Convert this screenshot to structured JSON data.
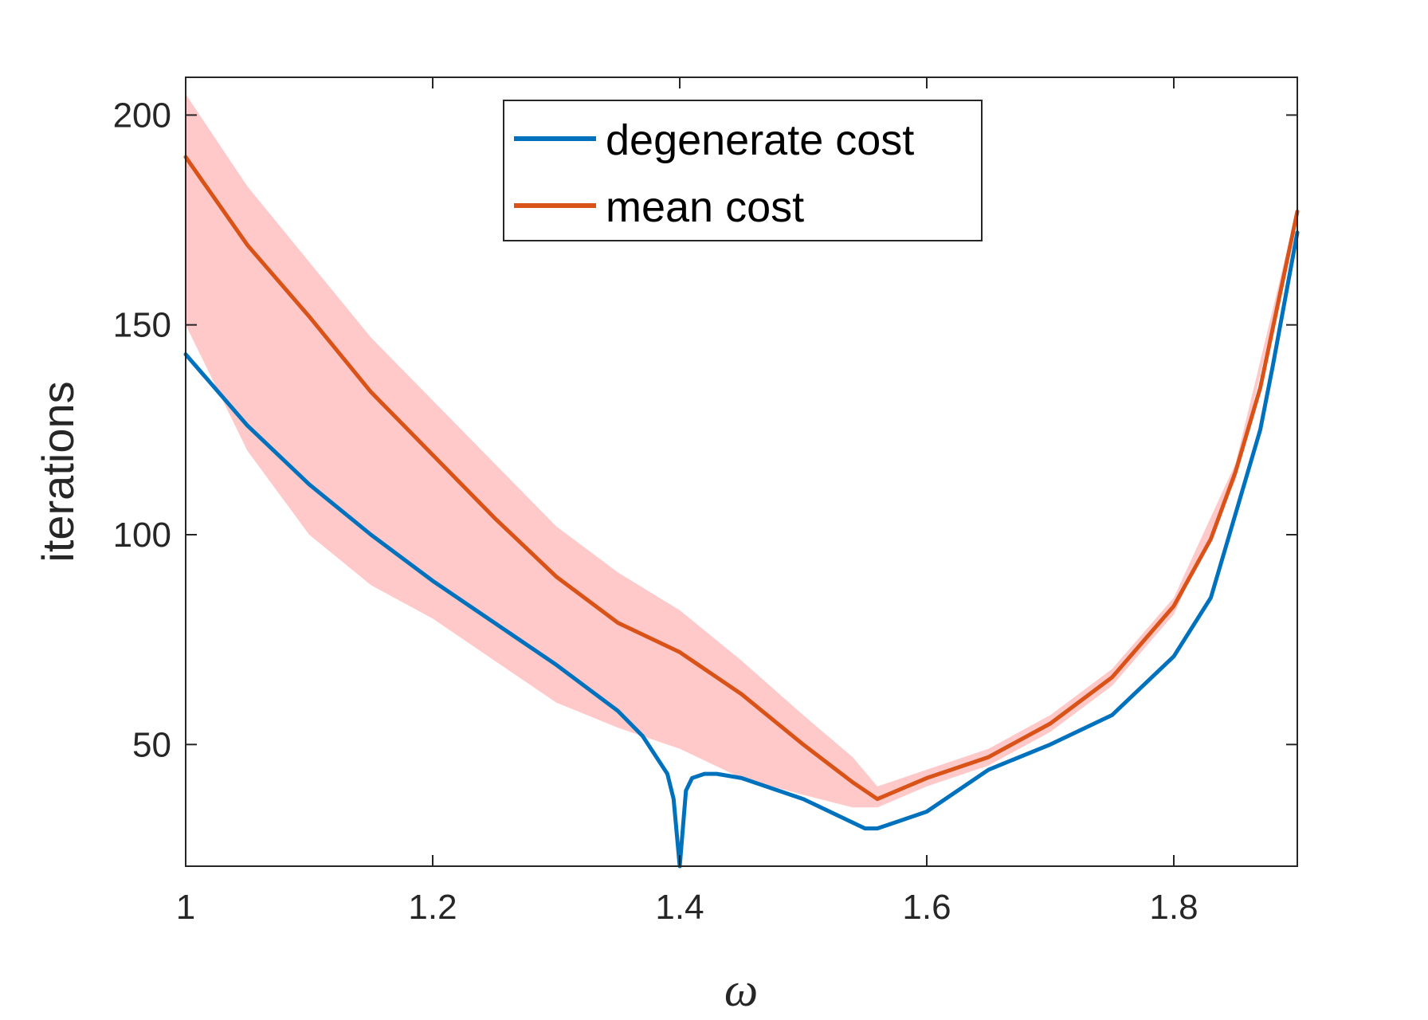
{
  "chart_data": {
    "type": "line",
    "title": "",
    "xlabel": "ω",
    "ylabel": "iterations",
    "xlim": [
      1,
      1.9
    ],
    "ylim": [
      21,
      209
    ],
    "xticks": [
      1,
      1.2,
      1.4,
      1.6,
      1.8
    ],
    "xtick_labels": [
      "1",
      "1.2",
      "1.4",
      "1.6",
      "1.8"
    ],
    "yticks": [
      50,
      100,
      150,
      200
    ],
    "ytick_labels": [
      "50",
      "100",
      "150",
      "200"
    ],
    "grid": false,
    "legend_position": "top-center",
    "series": [
      {
        "name": "degenerate cost",
        "color": "#0072BD",
        "x": [
          1.0,
          1.05,
          1.1,
          1.15,
          1.2,
          1.25,
          1.3,
          1.35,
          1.37,
          1.39,
          1.395,
          1.4,
          1.405,
          1.41,
          1.42,
          1.43,
          1.45,
          1.5,
          1.55,
          1.56,
          1.58,
          1.6,
          1.65,
          1.7,
          1.75,
          1.8,
          1.83,
          1.85,
          1.87,
          1.88,
          1.9
        ],
        "values": [
          143,
          126,
          112,
          100,
          89,
          79,
          69,
          58,
          52,
          43,
          37,
          21,
          39,
          42,
          43,
          43,
          42,
          37,
          30,
          30,
          32,
          34,
          44,
          50,
          57,
          71,
          85,
          105,
          125,
          140,
          172
        ]
      },
      {
        "name": "mean cost",
        "color": "#D95319",
        "x": [
          1.0,
          1.05,
          1.1,
          1.15,
          1.2,
          1.25,
          1.3,
          1.35,
          1.4,
          1.45,
          1.5,
          1.54,
          1.56,
          1.6,
          1.65,
          1.7,
          1.75,
          1.8,
          1.83,
          1.85,
          1.87,
          1.9
        ],
        "values": [
          190,
          169,
          152,
          134,
          119,
          104,
          90,
          79,
          72,
          62,
          50,
          41,
          37,
          42,
          47,
          55,
          66,
          83,
          99,
          115,
          135,
          177
        ]
      },
      {
        "name": "",
        "role": "band",
        "color": "#FFC9C9",
        "x": [
          1.0,
          1.05,
          1.1,
          1.15,
          1.2,
          1.25,
          1.3,
          1.35,
          1.4,
          1.45,
          1.5,
          1.54,
          1.56,
          1.6,
          1.65,
          1.7,
          1.75,
          1.8,
          1.85,
          1.9
        ],
        "upper": [
          205,
          183,
          165,
          147,
          132,
          117,
          102,
          91,
          82,
          70,
          57,
          47,
          40,
          44,
          49,
          57,
          68,
          85,
          117,
          178
        ],
        "lower": [
          150,
          120,
          100,
          88,
          80,
          70,
          60,
          54,
          49,
          42,
          38,
          35,
          35,
          40,
          45,
          53,
          64,
          81,
          113,
          176
        ]
      }
    ]
  }
}
